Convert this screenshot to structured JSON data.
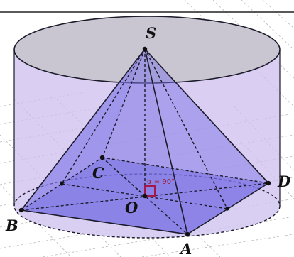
{
  "figure": {
    "points": {
      "S": "S",
      "A": "A",
      "B": "B",
      "C": "C",
      "D": "D",
      "O": "O"
    },
    "angle_label": "α = 90°"
  },
  "colors": {
    "cylinder_side": "#cdbfee",
    "cylinder_top": "#c9c6d2",
    "pyramid_face": "#7d74e6",
    "base_square": "#6e66e0",
    "edge": "#1b1b2a",
    "right_angle": "#a3174a",
    "grid": "#b8b8b8"
  }
}
